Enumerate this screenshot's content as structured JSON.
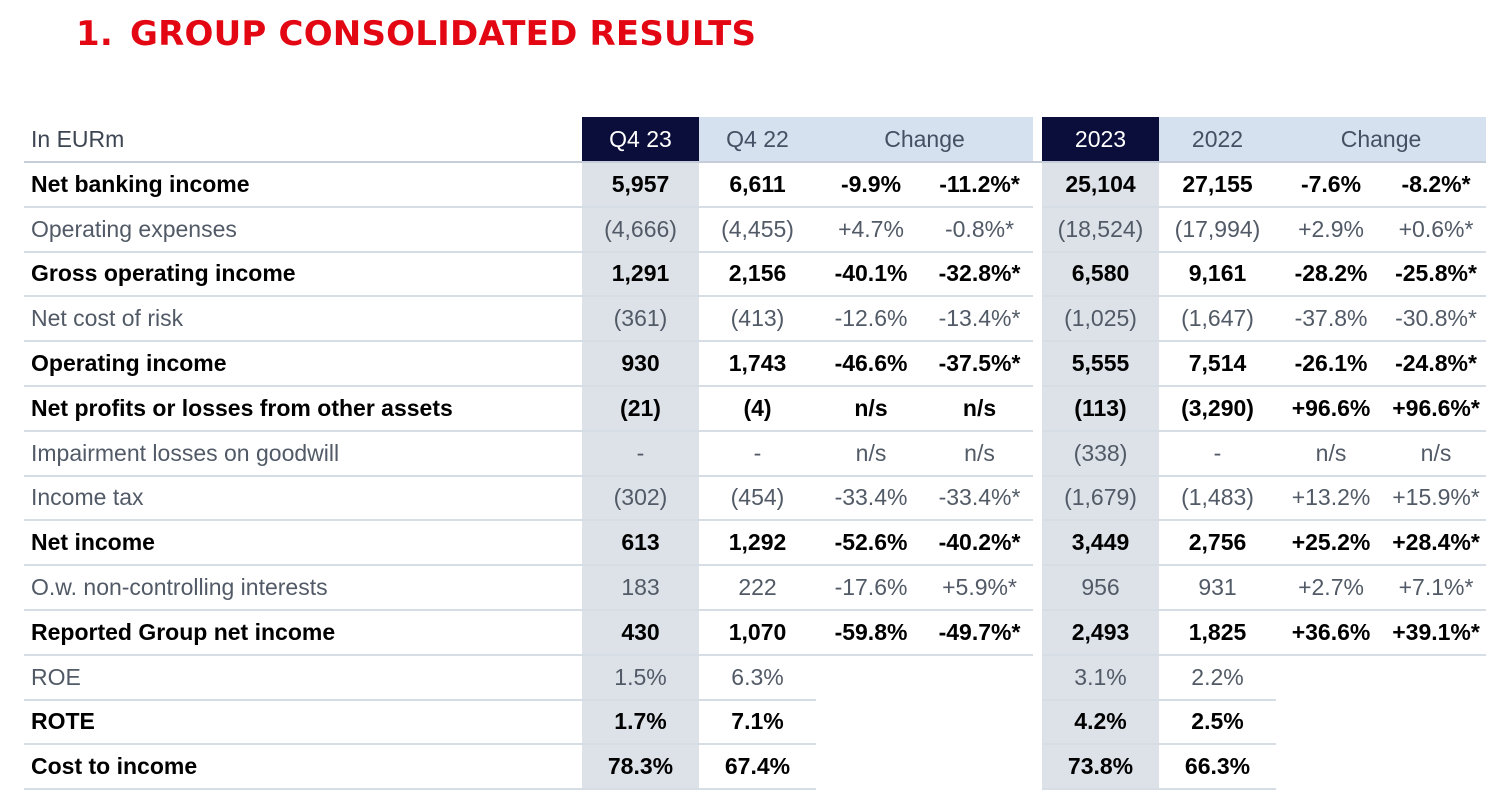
{
  "title": {
    "number": "1.",
    "text": "GROUP CONSOLIDATED RESULTS"
  },
  "colors": {
    "title_red": "#e30613",
    "header_dark": "#0b0d3a",
    "header_light": "#d5e1ee",
    "highlight_column": "#dde2e8"
  },
  "table": {
    "headers": {
      "label": "In EURm",
      "q4_23": "Q4 23",
      "q4_22": "Q4 22",
      "q_change": "Change",
      "y2023": "2023",
      "y2022": "2022",
      "y_change": "Change"
    },
    "rows": [
      {
        "label": "Net banking income",
        "style": "bold",
        "cells": [
          "5,957",
          "6,611",
          "-9.9%",
          "-11.2%*",
          "25,104",
          "27,155",
          "-7.6%",
          "-8.2%*"
        ]
      },
      {
        "label": "Operating expenses",
        "style": "light",
        "cells": [
          "(4,666)",
          "(4,455)",
          "+4.7%",
          "-0.8%*",
          "(18,524)",
          "(17,994)",
          "+2.9%",
          "+0.6%*"
        ]
      },
      {
        "label": "Gross operating income",
        "style": "bold",
        "cells": [
          "1,291",
          "2,156",
          "-40.1%",
          "-32.8%*",
          "6,580",
          "9,161",
          "-28.2%",
          "-25.8%*"
        ]
      },
      {
        "label": "Net cost of risk",
        "style": "light",
        "cells": [
          "(361)",
          "(413)",
          "-12.6%",
          "-13.4%*",
          "(1,025)",
          "(1,647)",
          "-37.8%",
          "-30.8%*"
        ]
      },
      {
        "label": "Operating income",
        "style": "bold",
        "cells": [
          "930",
          "1,743",
          "-46.6%",
          "-37.5%*",
          "5,555",
          "7,514",
          "-26.1%",
          "-24.8%*"
        ]
      },
      {
        "label": "Net profits or losses from other assets",
        "style": "bold",
        "cells": [
          "(21)",
          "(4)",
          "n/s",
          "n/s",
          "(113)",
          "(3,290)",
          "+96.6%",
          "+96.6%*"
        ]
      },
      {
        "label": "Impairment losses on goodwill",
        "style": "light",
        "cells": [
          "-",
          "-",
          "n/s",
          "n/s",
          "(338)",
          "-",
          "n/s",
          "n/s"
        ]
      },
      {
        "label": "Income tax",
        "style": "light",
        "cells": [
          "(302)",
          "(454)",
          "-33.4%",
          "-33.4%*",
          "(1,679)",
          "(1,483)",
          "+13.2%",
          "+15.9%*"
        ]
      },
      {
        "label": "Net income",
        "style": "bold",
        "cells": [
          "613",
          "1,292",
          "-52.6%",
          "-40.2%*",
          "3,449",
          "2,756",
          "+25.2%",
          "+28.4%*"
        ]
      },
      {
        "label": "O.w. non-controlling interests",
        "style": "light",
        "cells": [
          "183",
          "222",
          "-17.6%",
          "+5.9%*",
          "956",
          "931",
          "+2.7%",
          "+7.1%*"
        ]
      },
      {
        "label": "Reported Group net income",
        "style": "bold",
        "cells": [
          "430",
          "1,070",
          "-59.8%",
          "-49.7%*",
          "2,493",
          "1,825",
          "+36.6%",
          "+39.1%*"
        ]
      },
      {
        "label": "ROE",
        "style": "light",
        "cells": [
          "1.5%",
          "6.3%",
          "",
          "",
          "3.1%",
          "2.2%",
          "",
          ""
        ]
      },
      {
        "label": "ROTE",
        "style": "bold",
        "cells": [
          "1.7%",
          "7.1%",
          "",
          "",
          "4.2%",
          "2.5%",
          "",
          ""
        ]
      },
      {
        "label": "Cost to income",
        "style": "bold",
        "cells": [
          "78.3%",
          "67.4%",
          "",
          "",
          "73.8%",
          "66.3%",
          "",
          ""
        ]
      }
    ]
  }
}
